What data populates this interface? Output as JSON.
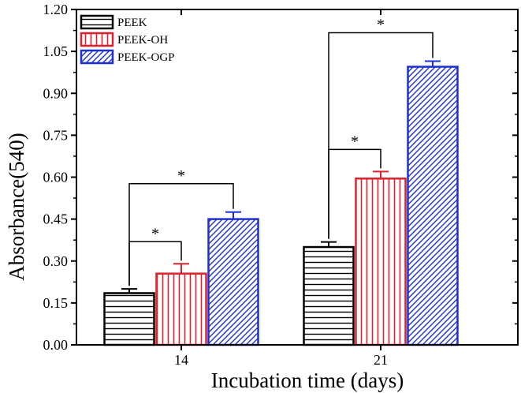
{
  "chart_data": {
    "type": "bar",
    "xlabel": "Incubation time (days)",
    "ylabel": "Absorbance(540)",
    "categories": [
      "14",
      "21"
    ],
    "ylim": [
      0,
      1.2
    ],
    "yticks": [
      "0.00",
      "0.15",
      "0.30",
      "0.45",
      "0.60",
      "0.75",
      "0.90",
      "1.05",
      "1.20"
    ],
    "series": [
      {
        "name": "PEEK",
        "values": [
          0.185,
          0.35
        ],
        "errors": [
          0.015,
          0.018
        ],
        "color": "#000000",
        "pattern": "horizontal"
      },
      {
        "name": "PEEK-OH",
        "values": [
          0.255,
          0.595
        ],
        "errors": [
          0.035,
          0.025
        ],
        "color": "#e0202a",
        "pattern": "vertical"
      },
      {
        "name": "PEEK-OGP",
        "values": [
          0.45,
          0.995
        ],
        "errors": [
          0.025,
          0.02
        ],
        "color": "#1f2fd6",
        "pattern": "diagonal"
      }
    ],
    "significance": [
      {
        "category": 0,
        "from": 0,
        "to": 1,
        "label": "*"
      },
      {
        "category": 0,
        "from": 0,
        "to": 2,
        "label": "*"
      },
      {
        "category": 1,
        "from": 0,
        "to": 1,
        "label": "*"
      },
      {
        "category": 1,
        "from": 0,
        "to": 2,
        "label": "*"
      }
    ],
    "legend_position": "top-left",
    "grid": false
  }
}
